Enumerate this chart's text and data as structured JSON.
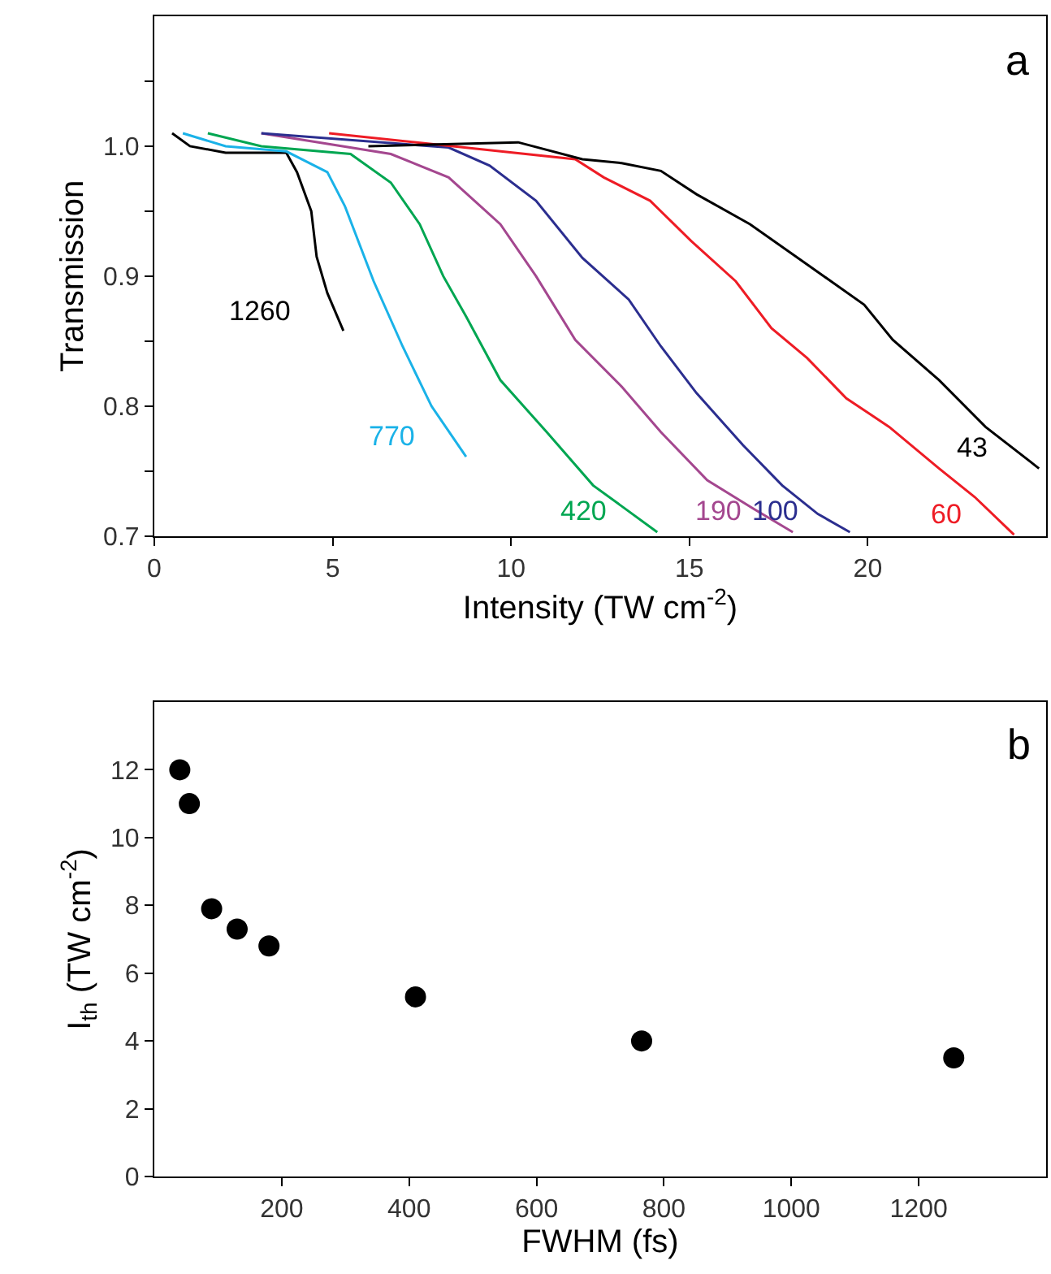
{
  "chart_data": [
    {
      "type": "line",
      "xlabel": "Intensity (TW cm$^{-2}$)",
      "ylabel": "Transmission",
      "xlim": [
        0,
        25
      ],
      "xticks": [
        0,
        5,
        10,
        15,
        20
      ],
      "ylim": [
        0.7,
        1.1
      ],
      "yticks": [
        0.7,
        {
          "value": 0.75,
          "label": null
        },
        0.8,
        {
          "value": 0.85,
          "label": null
        },
        0.9,
        {
          "value": 0.95,
          "label": null
        },
        {
          "value": 1.0,
          "label": "1.0"
        },
        {
          "value": 1.05,
          "label": null
        }
      ],
      "legend": false,
      "marker": "none",
      "line_style": "solid",
      "series": [
        {
          "name": "1260",
          "color": "#000000",
          "x": [
            0.5,
            1,
            2,
            3,
            3.7,
            4.0,
            4.4,
            4.55,
            4.85,
            5.3
          ],
          "values": [
            1.01,
            1.0,
            0.995,
            0.995,
            0.995,
            0.98,
            0.95,
            0.915,
            0.887,
            0.858
          ]
        },
        {
          "name": "770",
          "color": "#1ab2e8",
          "x": [
            0.8,
            2,
            3.7,
            4.85,
            5.34,
            6.15,
            6.96,
            7.77,
            8.74
          ],
          "values": [
            1.01,
            1.0,
            0.996,
            0.98,
            0.954,
            0.896,
            0.846,
            0.8,
            0.761
          ]
        },
        {
          "name": "420",
          "color": "#00a651",
          "x": [
            1.5,
            3,
            5.5,
            6.63,
            7.44,
            8.1,
            8.74,
            9.7,
            11.0,
            12.3,
            14.1
          ],
          "values": [
            1.01,
            1.0,
            0.994,
            0.972,
            0.94,
            0.9,
            0.869,
            0.82,
            0.78,
            0.739,
            0.703
          ]
        },
        {
          "name": "190",
          "color": "#a4478f",
          "x": [
            3,
            6.63,
            8.25,
            9.7,
            10.7,
            11.8,
            13.1,
            14.2,
            15.5,
            16.8,
            17.9
          ],
          "values": [
            1.01,
            0.994,
            0.976,
            0.94,
            0.9,
            0.851,
            0.815,
            0.78,
            0.743,
            0.721,
            0.703
          ]
        },
        {
          "name": "100",
          "color": "#2b2e8f",
          "x": [
            3,
            8.25,
            9.4,
            10.7,
            12.0,
            13.3,
            14.2,
            15.2,
            16.5,
            17.6,
            18.6,
            19.5
          ],
          "values": [
            1.01,
            0.999,
            0.985,
            0.958,
            0.914,
            0.882,
            0.846,
            0.81,
            0.77,
            0.739,
            0.717,
            0.703
          ]
        },
        {
          "name": "60",
          "color": "#ee1c25",
          "x": [
            4.9,
            11.8,
            12.6,
            13.9,
            15.05,
            16.3,
            17.3,
            18.3,
            19.4,
            20.6,
            22.0,
            23.0,
            24.1
          ],
          "values": [
            1.01,
            0.99,
            0.976,
            0.958,
            0.927,
            0.896,
            0.86,
            0.837,
            0.806,
            0.784,
            0.752,
            0.73,
            0.701
          ]
        },
        {
          "name": "43",
          "color": "#000000",
          "x": [
            6,
            10.2,
            12.0,
            13.1,
            14.2,
            15.2,
            16.7,
            18.3,
            19.9,
            20.7,
            22.0,
            23.3,
            24.8
          ],
          "values": [
            1.0,
            1.003,
            0.99,
            0.987,
            0.981,
            0.963,
            0.94,
            0.909,
            0.878,
            0.851,
            0.82,
            0.784,
            0.752
          ]
        }
      ],
      "annotations": [
        "a"
      ]
    },
    {
      "type": "scatter",
      "xlabel": "FWHM (fs)",
      "ylabel": "I$_{th}$ (TW cm$^{-2}$)",
      "xlim": [
        0,
        1400
      ],
      "xticks": [
        200,
        400,
        600,
        800,
        1000,
        1200
      ],
      "ylim": [
        0,
        14
      ],
      "yticks": [
        0,
        2,
        4,
        6,
        8,
        10,
        12
      ],
      "legend": false,
      "marker": "circle",
      "series": [
        {
          "color": "#000000",
          "x": [
            40,
            55,
            90,
            130,
            180,
            410,
            765,
            1255
          ],
          "values": [
            12.0,
            11.0,
            7.9,
            7.3,
            6.8,
            5.3,
            4.0,
            3.5
          ]
        }
      ],
      "annotations": [
        "b"
      ]
    }
  ]
}
